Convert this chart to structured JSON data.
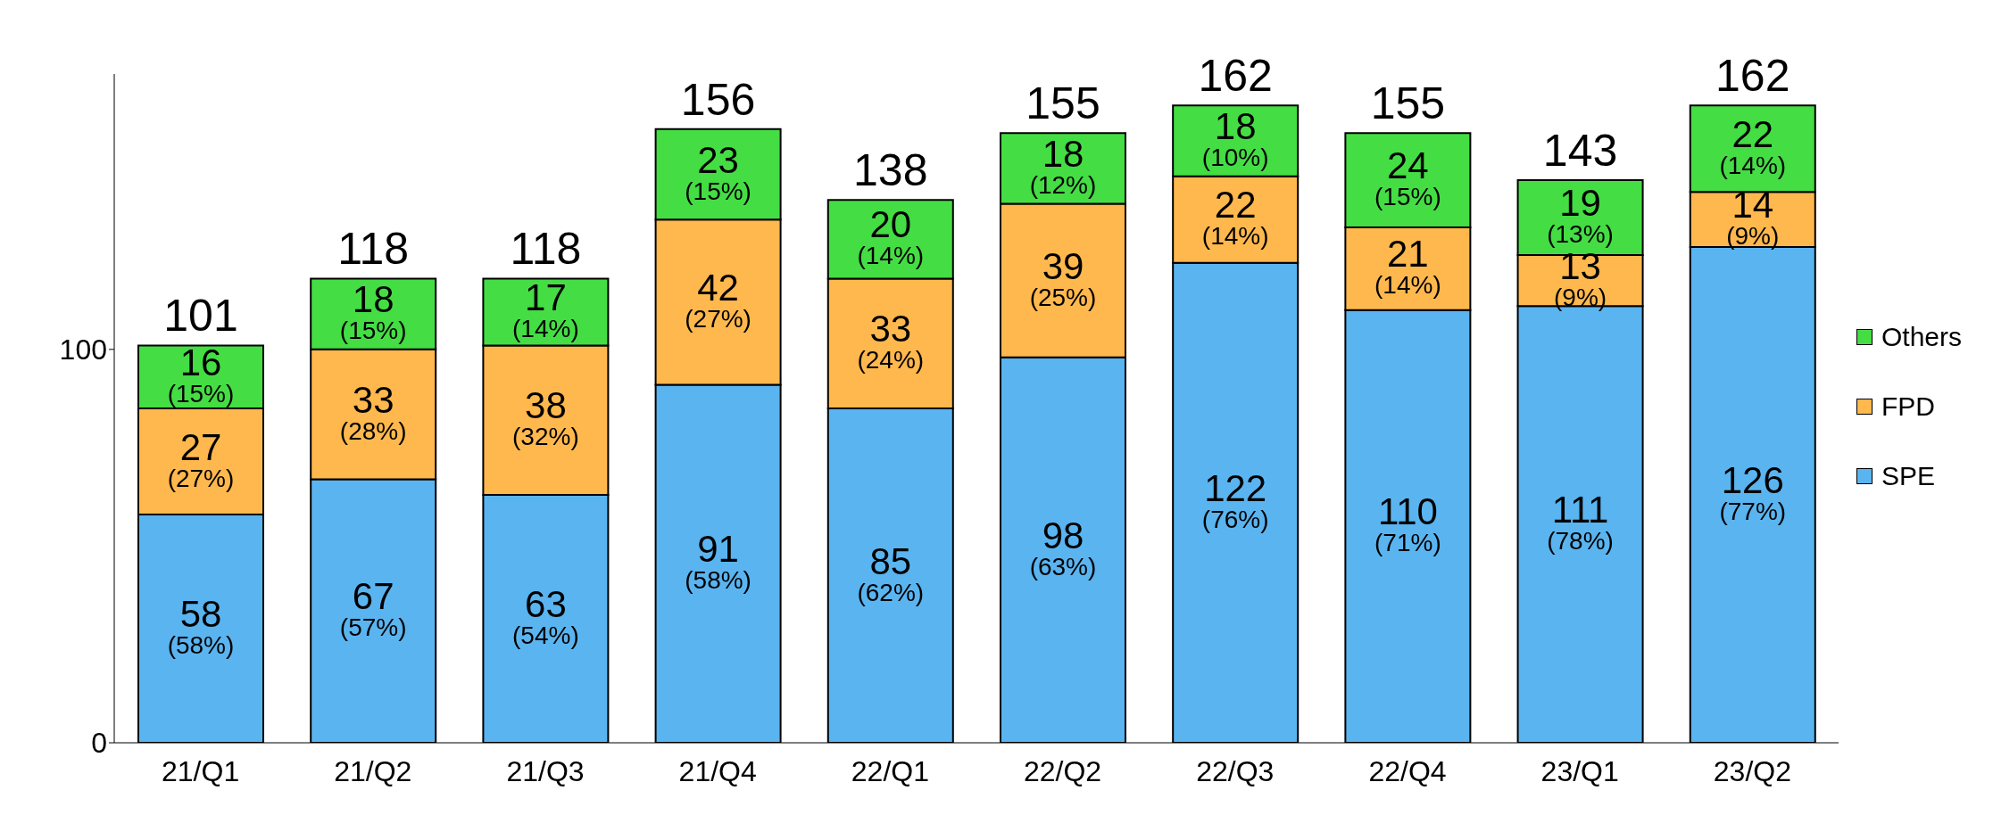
{
  "chart_data": {
    "type": "bar",
    "stacked": true,
    "categories": [
      "21/Q1",
      "21/Q2",
      "21/Q3",
      "21/Q4",
      "22/Q1",
      "22/Q2",
      "22/Q3",
      "22/Q4",
      "23/Q1",
      "23/Q2"
    ],
    "series": [
      {
        "name": "SPE",
        "color": "#5ab4f0",
        "values": [
          58,
          67,
          63,
          91,
          85,
          98,
          122,
          110,
          111,
          126
        ],
        "value_labels": [
          "58 (58%)",
          "67 (57%)",
          "63 (54%)",
          "91 (58%)",
          "85 (62%)",
          "98 (63%)",
          "122 (76%)",
          "110 (71%)",
          "111 (78%)",
          "126 (77%)"
        ]
      },
      {
        "name": "FPD",
        "color": "#ffb84d",
        "values": [
          27,
          33,
          38,
          42,
          33,
          39,
          22,
          21,
          13,
          14
        ],
        "value_labels": [
          "27 (27%)",
          "33 (28%)",
          "38 (32%)",
          "42 (27%)",
          "33 (24%)",
          "39 (25%)",
          "22 (14%)",
          "21 (14%)",
          "13 (9%)",
          "14 (9%)"
        ]
      },
      {
        "name": "Others",
        "color": "#44dd44",
        "values": [
          16,
          18,
          17,
          23,
          20,
          18,
          18,
          24,
          19,
          22
        ],
        "value_labels": [
          "16 (15%)",
          "18 (15%)",
          "17 (14%)",
          "23 (15%)",
          "20 (14%)",
          "18 (12%)",
          "18 (10%)",
          "24 (15%)",
          "19 (13%)",
          "22 (14%)"
        ]
      }
    ],
    "totals": [
      "101",
      "118",
      "118",
      "156",
      "138",
      "155",
      "162",
      "155",
      "143",
      "162"
    ],
    "ylim": [
      0,
      170
    ],
    "yticks": [
      0,
      100
    ],
    "grid": false,
    "legend": "right"
  }
}
